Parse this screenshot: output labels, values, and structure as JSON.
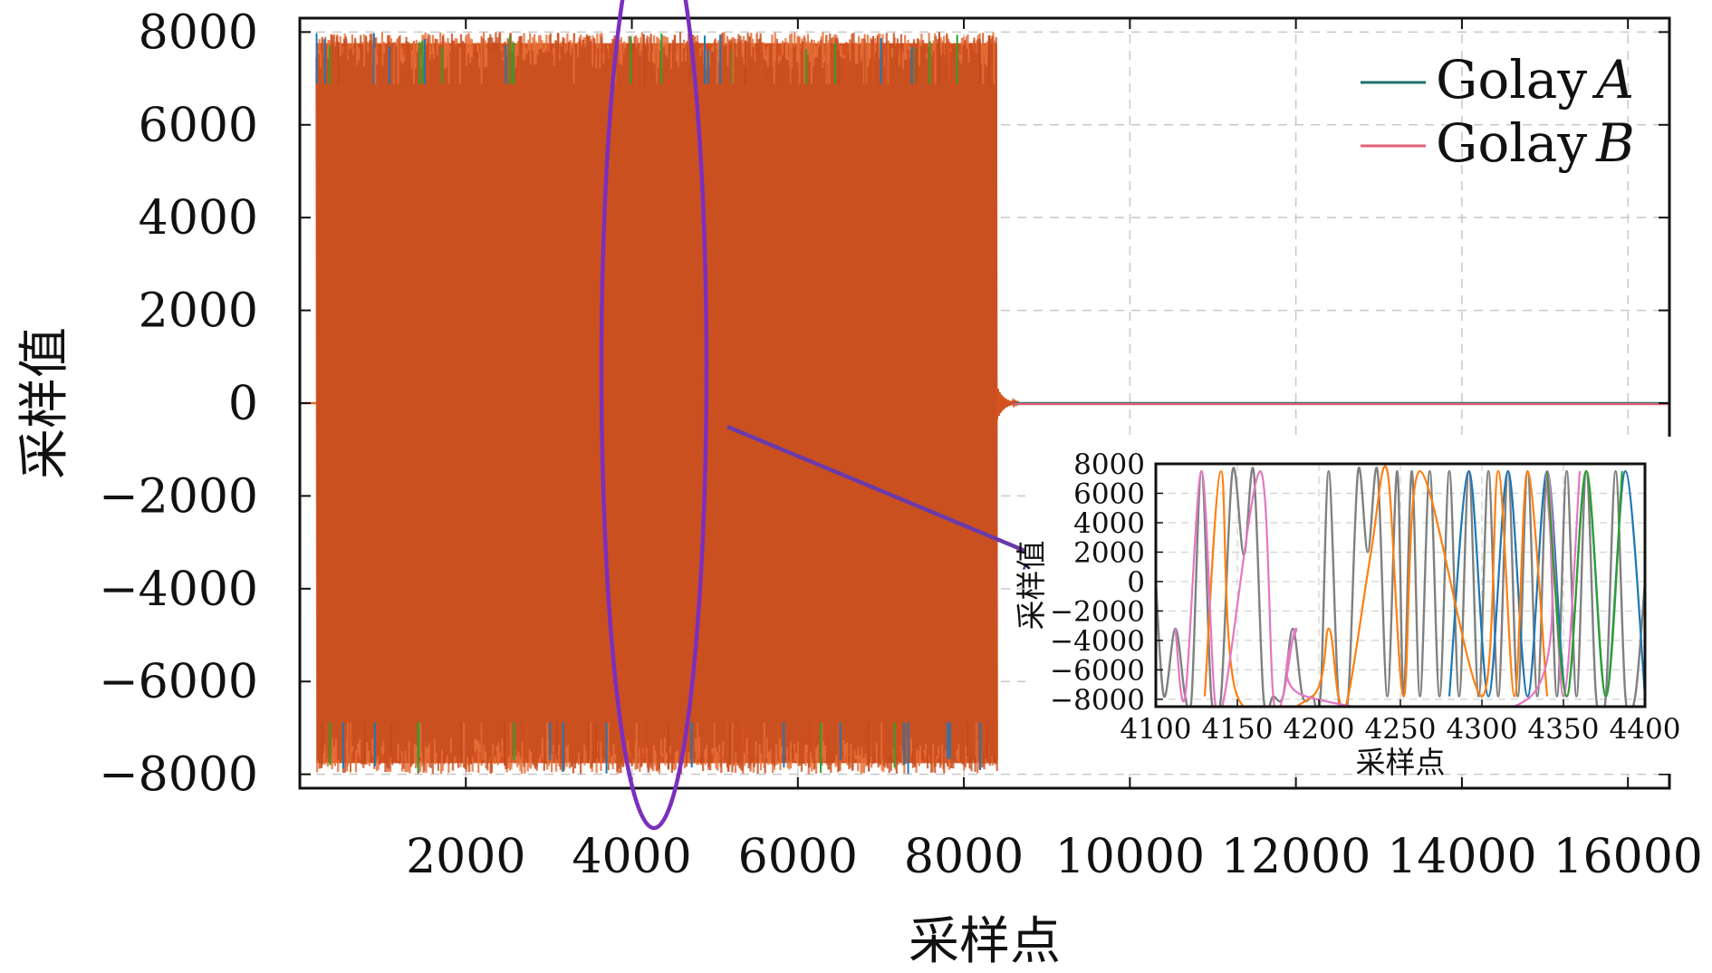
{
  "chart_data": [
    {
      "type": "line",
      "xlabel": "采样点",
      "ylabel": "采样值",
      "xlim": [
        0,
        16500
      ],
      "ylim": [
        -8300,
        8300
      ],
      "x_ticks": [
        2000,
        4000,
        6000,
        8000,
        10000,
        12000,
        14000,
        16000
      ],
      "y_ticks": [
        -8000,
        -6000,
        -4000,
        -2000,
        0,
        2000,
        4000,
        6000,
        8000
      ],
      "grid": true,
      "legend_position": "top-right",
      "series": [
        {
          "name": "Golay",
          "name_suffix": "A",
          "color": "#1f6f6a",
          "signal_range": [
            200,
            8400
          ],
          "amplitude": 8000,
          "after_signal": 0
        },
        {
          "name": "Golay",
          "name_suffix": "B",
          "color": "#e0607a",
          "signal_range": [
            200,
            8400
          ],
          "amplitude": 8000,
          "after_signal": 0
        }
      ],
      "fill_color": "#d4521f",
      "annotation": {
        "type": "ellipse",
        "center_x": 4200,
        "color": "#7b2fbe",
        "arrow_color": "#6a3aa8"
      }
    },
    {
      "type": "line",
      "role": "inset",
      "xlabel": "采样点",
      "ylabel": "采样值",
      "xlim": [
        4100,
        4400
      ],
      "ylim": [
        -8500,
        8000
      ],
      "x_ticks": [
        4100,
        4150,
        4200,
        4250,
        4300,
        4350,
        4400
      ],
      "y_ticks": [
        -8000,
        -6000,
        -4000,
        -2000,
        0,
        2000,
        4000,
        6000,
        8000
      ],
      "grid": true,
      "series": [
        {
          "color": "#808080",
          "x": [
            4100,
            4105,
            4112,
            4118,
            4122,
            4128,
            4134,
            4140,
            4147,
            4154,
            4160,
            4166,
            4172,
            4178,
            4184,
            4190,
            4196,
            4201,
            4206,
            4212,
            4218,
            4224,
            4230,
            4236,
            4242,
            4248,
            4252,
            4257,
            4262,
            4268,
            4274,
            4280,
            4286,
            4292,
            4298,
            4304,
            4310,
            4316,
            4322,
            4328,
            4334,
            4340,
            4346,
            4352,
            4358,
            4364,
            4370,
            4376,
            4382,
            4388,
            4394,
            4400
          ],
          "y": [
            0,
            -7800,
            -3200,
            -7800,
            -7800,
            7500,
            -7800,
            -7800,
            7500,
            1800,
            7500,
            -7800,
            -7800,
            -7800,
            -3200,
            -7800,
            -7800,
            -7800,
            7500,
            -7800,
            -7800,
            7500,
            2000,
            7500,
            -7800,
            7500,
            -7800,
            7500,
            -7800,
            7500,
            -7800,
            7500,
            -7800,
            7500,
            -7800,
            7500,
            -7800,
            7500,
            -7800,
            7500,
            -7800,
            7500,
            -7800,
            7500,
            -7800,
            7500,
            -7800,
            -7800,
            7500,
            -7800,
            -7800,
            0
          ]
        },
        {
          "color": "#1f77b4",
          "x": [
            4280,
            4292,
            4304,
            4316,
            4328,
            4340,
            4352,
            4364,
            4376,
            4388,
            4400
          ],
          "y": [
            -7800,
            7500,
            -7800,
            7500,
            -7800,
            7500,
            -7800,
            7500,
            -7800,
            7500,
            -7800
          ]
        },
        {
          "color": "#ff7f0e",
          "x": [
            4130,
            4140,
            4150,
            4196,
            4206,
            4212,
            4218,
            4232,
            4242,
            4252,
            4262,
            4300,
            4310,
            4320,
            4328,
            4340
          ],
          "y": [
            -7800,
            7500,
            -7800,
            -7800,
            -3200,
            -7800,
            -7800,
            2000,
            7500,
            -7800,
            7500,
            -7800,
            7500,
            -7800,
            7500,
            -7800
          ]
        },
        {
          "color": "#e377c2",
          "x": [
            4112,
            4118,
            4128,
            4136,
            4142,
            4164,
            4172,
            4178,
            4186,
            4192,
            4330,
            4340,
            4350,
            4360
          ],
          "y": [
            -3200,
            -7800,
            7500,
            -7800,
            -7800,
            7500,
            -7800,
            -7800,
            -3200,
            -7800,
            -7800,
            7500,
            -7800,
            7500
          ]
        },
        {
          "color": "#2ca02c",
          "x": [
            4340,
            4352,
            4364,
            4376,
            4386
          ],
          "y": [
            7500,
            -7800,
            7500,
            -7800,
            7500
          ]
        }
      ]
    }
  ]
}
